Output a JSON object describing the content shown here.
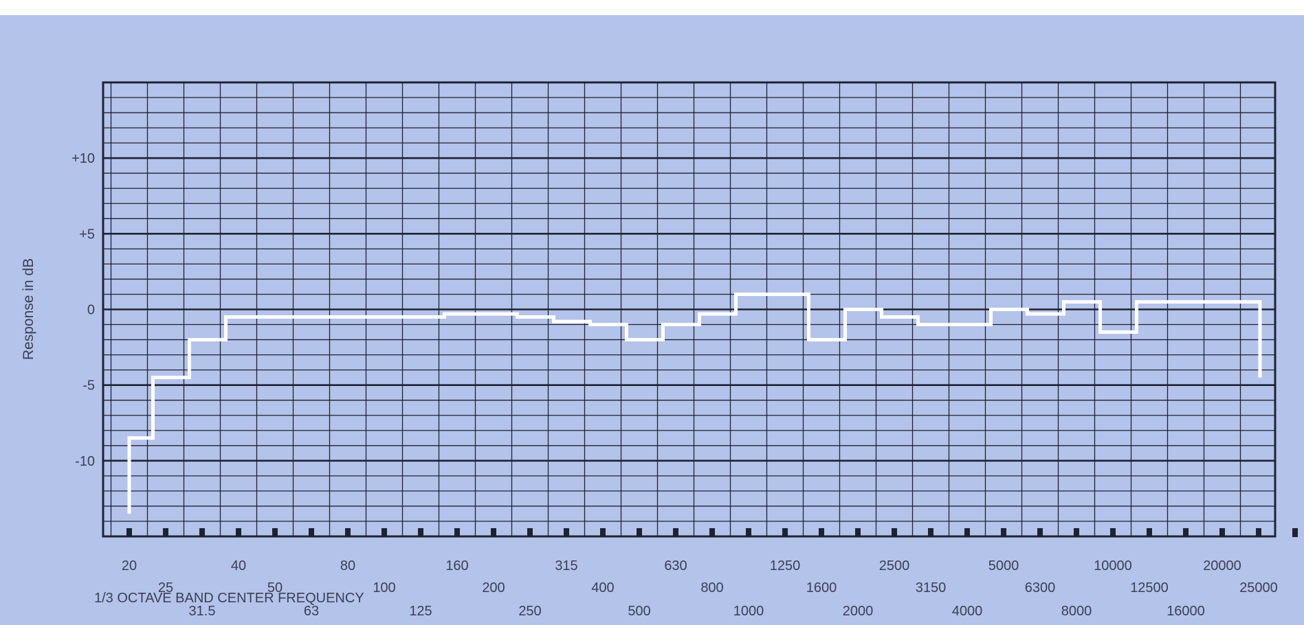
{
  "chart_data": {
    "type": "line",
    "ylabel": "Response in dB",
    "xlabel": "1/3 OCTAVE BAND CENTER FREQUENCY",
    "ylim": [
      -15,
      15
    ],
    "yticks": [
      "+10",
      "+5",
      "0",
      "-5",
      "-10"
    ],
    "ytick_values": [
      10,
      5,
      0,
      -5,
      -10
    ],
    "grid": true,
    "colors": {
      "background": "#b4c3ea",
      "grid": "#1e2333",
      "trace": "#ffffff"
    },
    "categories": [
      "20",
      "25",
      "31.5",
      "40",
      "50",
      "63",
      "80",
      "100",
      "125",
      "160",
      "200",
      "250",
      "315",
      "400",
      "500",
      "630",
      "800",
      "1000",
      "1250",
      "1600",
      "2000",
      "2500",
      "3150",
      "4000",
      "5000",
      "6300",
      "8000",
      "10000",
      "12500",
      "16000",
      "20000",
      "25000"
    ],
    "series": [
      {
        "values": [
          -8.5,
          -4.5,
          -2.0,
          -0.5,
          -0.5,
          -0.5,
          -0.5,
          -0.5,
          -0.5,
          -0.3,
          -0.3,
          -0.5,
          -0.8,
          -1.0,
          -2.0,
          -1.0,
          -0.3,
          1.0,
          1.0,
          -2.0,
          0.0,
          -0.5,
          -1.0,
          -1.0,
          0.0,
          -0.3,
          0.5,
          -1.5,
          0.5,
          0.5,
          0.5,
          -4.5
        ]
      }
    ]
  }
}
